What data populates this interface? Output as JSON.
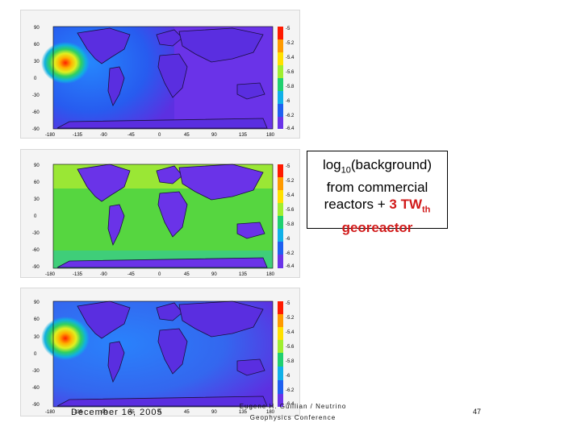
{
  "callout": {
    "line1_prefix": "log",
    "line1_sub": "10",
    "line1_suffix": "(background)",
    "line2": "from commercial",
    "line3_prefix": "reactors + ",
    "line3_red": "3 TW",
    "line3_sub": "th",
    "line4": "georeactor"
  },
  "footer": {
    "date": "December 16, 2005",
    "conference": "Eugene H. Guillian / Neutrino Geophysics Conference",
    "page_number": "47"
  },
  "maps": [
    {
      "y_ticks": [
        "90",
        "60",
        "30",
        "0",
        "-30",
        "-60",
        "-90"
      ],
      "x_ticks": [
        "-180",
        "-135",
        "-90",
        "-45",
        "0",
        "45",
        "90",
        "135",
        "180"
      ],
      "colorbar_ticks": [
        "-5",
        "-5.2",
        "-5.4",
        "-5.6",
        "-5.8",
        "-6",
        "-6.2",
        "-6.4"
      ]
    },
    {
      "y_ticks": [
        "90",
        "60",
        "30",
        "0",
        "-30",
        "-60",
        "-90"
      ],
      "x_ticks": [
        "-180",
        "-135",
        "-90",
        "-45",
        "0",
        "45",
        "90",
        "135",
        "180"
      ],
      "colorbar_ticks": [
        "-5",
        "-5.2",
        "-5.4",
        "-5.6",
        "-5.8",
        "-6",
        "-6.2",
        "-6.4"
      ]
    },
    {
      "y_ticks": [
        "90",
        "60",
        "30",
        "0",
        "-30",
        "-60",
        "-90"
      ],
      "x_ticks": [
        "-180",
        "-135",
        "-90",
        "-45",
        "0",
        "45",
        "90",
        "135",
        "180"
      ],
      "colorbar_ticks": [
        "-5",
        "-5.2",
        "-5.4",
        "-5.6",
        "-5.8",
        "-6",
        "-6.2",
        "-6.4"
      ]
    }
  ]
}
